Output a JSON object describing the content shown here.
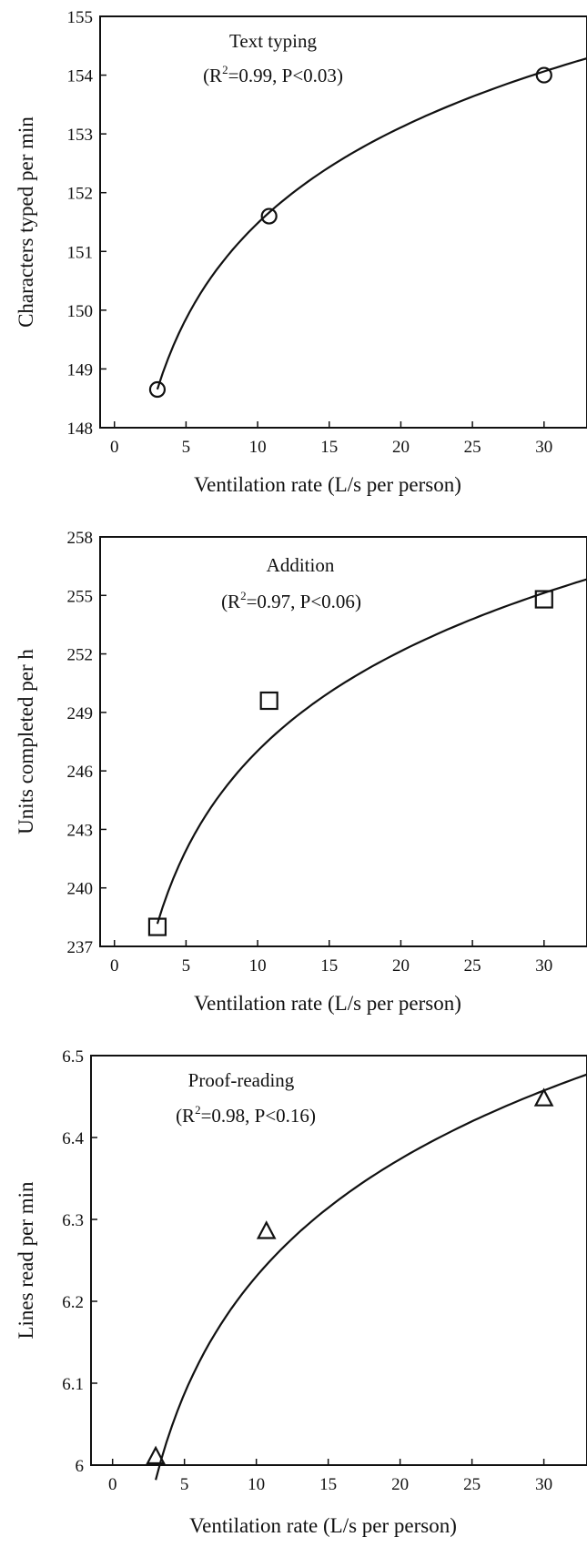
{
  "chart_data": [
    {
      "type": "scatter",
      "xlabel": "Ventilation rate (L/s per person)",
      "ylabel": "Characters typed per min",
      "xlim": [
        -1,
        33
      ],
      "ylim": [
        148,
        155
      ],
      "xticks": [
        0,
        5,
        10,
        15,
        20,
        25,
        30
      ],
      "yticks": [
        148,
        149,
        150,
        151,
        152,
        153,
        154,
        155
      ],
      "marker": "circle",
      "annotation": {
        "title": "Text typing",
        "r2": "0.99",
        "p": "P<0.03"
      },
      "series": [
        {
          "x": [
            3,
            10.8,
            30
          ],
          "y": [
            148.65,
            151.6,
            154.0
          ]
        }
      ],
      "fit": {
        "form": "a+b*ln(x)",
        "a": 146.07,
        "b": 2.35,
        "x_range": [
          3,
          33
        ]
      }
    },
    {
      "type": "scatter",
      "xlabel": "Ventilation rate (L/s per person)",
      "ylabel": "Units completed per h",
      "xlim": [
        -1,
        33
      ],
      "ylim": [
        237,
        258
      ],
      "xticks": [
        0,
        5,
        10,
        15,
        20,
        25,
        30
      ],
      "yticks": [
        237,
        240,
        243,
        246,
        249,
        252,
        255,
        258
      ],
      "marker": "square",
      "annotation": {
        "title": "Addition",
        "r2": "0.97",
        "p": "P<0.06"
      },
      "series": [
        {
          "x": [
            3,
            10.8,
            30
          ],
          "y": [
            238.0,
            249.6,
            254.8
          ]
        }
      ],
      "fit": {
        "form": "a+b*ln(x)",
        "a": 230.06,
        "b": 7.37,
        "x_range": [
          3,
          33
        ]
      }
    },
    {
      "type": "scatter",
      "xlabel": "Ventilation rate (L/s per person)",
      "ylabel": "Lines read per min",
      "xlim": [
        -1.5,
        33
      ],
      "ylim": [
        6.0,
        6.5
      ],
      "xticks": [
        0,
        5,
        10,
        15,
        20,
        25,
        30
      ],
      "yticks": [
        6,
        6.1,
        6.2,
        6.3,
        6.4,
        6.5
      ],
      "marker": "triangle",
      "annotation": {
        "title": "Proof-reading",
        "r2": "0.98",
        "p": "P<0.16"
      },
      "series": [
        {
          "x": [
            3,
            10.7,
            30
          ],
          "y": [
            6.01,
            6.285,
            6.447
          ]
        }
      ],
      "fit": {
        "form": "a+b*ln(x)",
        "a": 5.755,
        "b": 0.2065,
        "x_range": [
          3,
          33
        ]
      }
    }
  ]
}
